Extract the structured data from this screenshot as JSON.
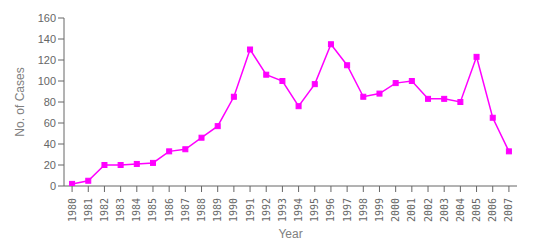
{
  "chart_data": {
    "type": "line",
    "xlabel": "Year",
    "ylabel": "No. of Cases",
    "x": [
      1980,
      1981,
      1982,
      1983,
      1984,
      1985,
      1986,
      1987,
      1988,
      1989,
      1990,
      1991,
      1992,
      1993,
      1994,
      1995,
      1996,
      1997,
      1998,
      1999,
      2000,
      2001,
      2002,
      2003,
      2004,
      2005,
      2006,
      2007
    ],
    "values": [
      2,
      5,
      20,
      20,
      21,
      22,
      33,
      35,
      46,
      57,
      85,
      130,
      106,
      100,
      76,
      97,
      135,
      115,
      85,
      88,
      98,
      100,
      83,
      83,
      80,
      123,
      65,
      33
    ],
    "color": "#ff00ff",
    "marker": "square",
    "xlim": [
      1979.5,
      2007.5
    ],
    "xticks": [
      1980,
      1981,
      1982,
      1983,
      1984,
      1985,
      1986,
      1987,
      1988,
      1989,
      1990,
      1991,
      1992,
      1993,
      1994,
      1995,
      1996,
      1997,
      1998,
      1999,
      2000,
      2001,
      2002,
      2003,
      2004,
      2005,
      2006,
      2007
    ],
    "ylim": [
      0,
      160
    ],
    "yticks": [
      0,
      20,
      40,
      60,
      80,
      100,
      120,
      140,
      160
    ],
    "grid": false
  }
}
